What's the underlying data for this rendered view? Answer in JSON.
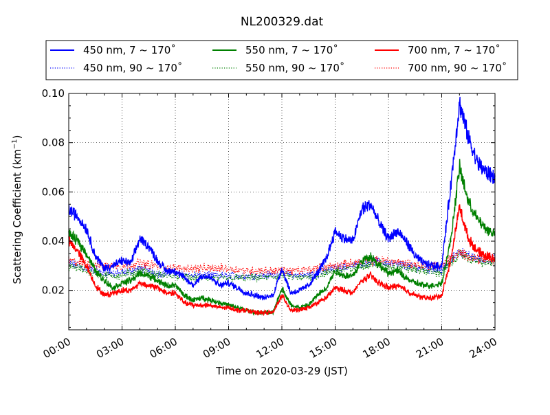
{
  "chart_data": {
    "type": "line",
    "title": "NL200329.dat",
    "xlabel": "Time on 2020-03-29 (JST)",
    "ylabel_main": "Scattering Coefficient (km",
    "ylabel_sup": "−1",
    "ylabel_close": ")",
    "x_unit": "hours",
    "xlim": [
      0,
      24
    ],
    "ylim": [
      0.004,
      0.1
    ],
    "grid": true,
    "legend_placement": "top, outside plot, 3 columns",
    "x_ticks": [
      {
        "value": 0,
        "label": "00:00"
      },
      {
        "value": 3,
        "label": "03:00"
      },
      {
        "value": 6,
        "label": "06:00"
      },
      {
        "value": 9,
        "label": "09:00"
      },
      {
        "value": 12,
        "label": "12:00"
      },
      {
        "value": 15,
        "label": "15:00"
      },
      {
        "value": 18,
        "label": "18:00"
      },
      {
        "value": 21,
        "label": "21:00"
      },
      {
        "value": 24,
        "label": "24:00"
      }
    ],
    "y_ticks": [
      {
        "value": 0.02,
        "label": "0.02"
      },
      {
        "value": 0.04,
        "label": "0.04"
      },
      {
        "value": 0.06,
        "label": "0.06"
      },
      {
        "value": 0.08,
        "label": "0.08"
      },
      {
        "value": 0.1,
        "label": "0.10"
      }
    ],
    "series": [
      {
        "name": "450 nm, 7 ~ 170˚",
        "color": "#0000ff",
        "style": "solid",
        "x": [
          0,
          0.5,
          1,
          1.5,
          2,
          2.5,
          3,
          3.5,
          4,
          4.5,
          5,
          5.5,
          6,
          6.5,
          7,
          7.5,
          8,
          8.5,
          9,
          9.5,
          10,
          10.5,
          11,
          11.5,
          12,
          12.5,
          13,
          13.5,
          14,
          14.5,
          15,
          15.5,
          16,
          16.5,
          17,
          17.5,
          18,
          18.5,
          19,
          19.5,
          20,
          20.5,
          21,
          21.5,
          22,
          22.5,
          23,
          23.5,
          24
        ],
        "values": [
          0.053,
          0.05,
          0.045,
          0.034,
          0.029,
          0.03,
          0.032,
          0.031,
          0.041,
          0.038,
          0.032,
          0.028,
          0.028,
          0.025,
          0.022,
          0.026,
          0.025,
          0.022,
          0.023,
          0.021,
          0.019,
          0.018,
          0.017,
          0.018,
          0.029,
          0.019,
          0.02,
          0.022,
          0.027,
          0.033,
          0.044,
          0.041,
          0.04,
          0.053,
          0.055,
          0.047,
          0.041,
          0.044,
          0.04,
          0.034,
          0.031,
          0.03,
          0.03,
          0.062,
          0.096,
          0.082,
          0.072,
          0.068,
          0.066
        ]
      },
      {
        "name": "450 nm, 90 ~ 170˚",
        "color": "#0000ff",
        "style": "dotted",
        "x": [
          0,
          1,
          2,
          3,
          4,
          5,
          6,
          7,
          8,
          9,
          10,
          11,
          12,
          13,
          14,
          15,
          16,
          17,
          18,
          19,
          20,
          21,
          21.5,
          22,
          22.5,
          23,
          23.5,
          24
        ],
        "values": [
          0.031,
          0.029,
          0.027,
          0.027,
          0.029,
          0.027,
          0.027,
          0.026,
          0.026,
          0.026,
          0.026,
          0.026,
          0.027,
          0.026,
          0.027,
          0.029,
          0.03,
          0.032,
          0.031,
          0.03,
          0.029,
          0.028,
          0.032,
          0.036,
          0.034,
          0.033,
          0.032,
          0.033
        ]
      },
      {
        "name": "550 nm, 7 ~ 170˚",
        "color": "#008000",
        "style": "solid",
        "x": [
          0,
          0.5,
          1,
          1.5,
          2,
          2.5,
          3,
          3.5,
          4,
          4.5,
          5,
          5.5,
          6,
          6.5,
          7,
          7.5,
          8,
          8.5,
          9,
          9.5,
          10,
          10.5,
          11,
          11.5,
          12,
          12.5,
          13,
          13.5,
          14,
          14.5,
          15,
          15.5,
          16,
          16.5,
          17,
          17.5,
          18,
          18.5,
          19,
          19.5,
          20,
          20.5,
          21,
          21.5,
          22,
          22.5,
          23,
          23.5,
          24
        ],
        "values": [
          0.043,
          0.04,
          0.035,
          0.028,
          0.024,
          0.021,
          0.023,
          0.024,
          0.027,
          0.026,
          0.024,
          0.022,
          0.022,
          0.018,
          0.016,
          0.017,
          0.016,
          0.015,
          0.014,
          0.013,
          0.012,
          0.011,
          0.011,
          0.011,
          0.021,
          0.014,
          0.013,
          0.014,
          0.018,
          0.021,
          0.028,
          0.026,
          0.026,
          0.032,
          0.034,
          0.03,
          0.027,
          0.028,
          0.025,
          0.023,
          0.022,
          0.022,
          0.023,
          0.04,
          0.07,
          0.056,
          0.049,
          0.045,
          0.043
        ]
      },
      {
        "name": "550 nm, 90 ~ 170˚",
        "color": "#008000",
        "style": "dotted",
        "x": [
          0,
          1,
          2,
          3,
          4,
          5,
          6,
          7,
          8,
          9,
          10,
          11,
          12,
          13,
          14,
          15,
          16,
          17,
          18,
          19,
          20,
          21,
          21.5,
          22,
          22.5,
          23,
          23.5,
          24
        ],
        "values": [
          0.03,
          0.028,
          0.026,
          0.026,
          0.028,
          0.026,
          0.026,
          0.025,
          0.025,
          0.025,
          0.025,
          0.025,
          0.026,
          0.025,
          0.026,
          0.028,
          0.029,
          0.031,
          0.03,
          0.029,
          0.028,
          0.027,
          0.031,
          0.035,
          0.033,
          0.032,
          0.031,
          0.032
        ]
      },
      {
        "name": "700 nm, 7 ~ 170˚",
        "color": "#ff0000",
        "style": "solid",
        "x": [
          0,
          0.5,
          1,
          1.5,
          2,
          2.5,
          3,
          3.5,
          4,
          4.5,
          5,
          5.5,
          6,
          6.5,
          7,
          7.5,
          8,
          8.5,
          9,
          9.5,
          10,
          10.5,
          11,
          11.5,
          12,
          12.5,
          13,
          13.5,
          14,
          14.5,
          15,
          15.5,
          16,
          16.5,
          17,
          17.5,
          18,
          18.5,
          19,
          19.5,
          20,
          20.5,
          21,
          21.5,
          22,
          22.5,
          23,
          23.5,
          24
        ],
        "values": [
          0.04,
          0.036,
          0.03,
          0.022,
          0.018,
          0.019,
          0.02,
          0.02,
          0.023,
          0.022,
          0.021,
          0.019,
          0.019,
          0.015,
          0.014,
          0.014,
          0.014,
          0.013,
          0.013,
          0.012,
          0.012,
          0.011,
          0.011,
          0.011,
          0.018,
          0.012,
          0.012,
          0.013,
          0.015,
          0.017,
          0.021,
          0.02,
          0.019,
          0.024,
          0.026,
          0.023,
          0.021,
          0.022,
          0.02,
          0.018,
          0.017,
          0.017,
          0.018,
          0.032,
          0.054,
          0.041,
          0.036,
          0.034,
          0.033
        ]
      },
      {
        "name": "700 nm, 90 ~ 170˚",
        "color": "#ff0000",
        "style": "dotted",
        "x": [
          0,
          1,
          2,
          3,
          4,
          5,
          6,
          7,
          8,
          9,
          10,
          11,
          12,
          13,
          14,
          15,
          16,
          17,
          18,
          19,
          20,
          21,
          21.5,
          22,
          22.5,
          23,
          23.5,
          24
        ],
        "values": [
          0.032,
          0.031,
          0.03,
          0.03,
          0.031,
          0.03,
          0.029,
          0.029,
          0.029,
          0.029,
          0.028,
          0.028,
          0.028,
          0.028,
          0.029,
          0.03,
          0.031,
          0.032,
          0.032,
          0.031,
          0.03,
          0.03,
          0.033,
          0.035,
          0.034,
          0.033,
          0.032,
          0.033
        ]
      }
    ]
  }
}
